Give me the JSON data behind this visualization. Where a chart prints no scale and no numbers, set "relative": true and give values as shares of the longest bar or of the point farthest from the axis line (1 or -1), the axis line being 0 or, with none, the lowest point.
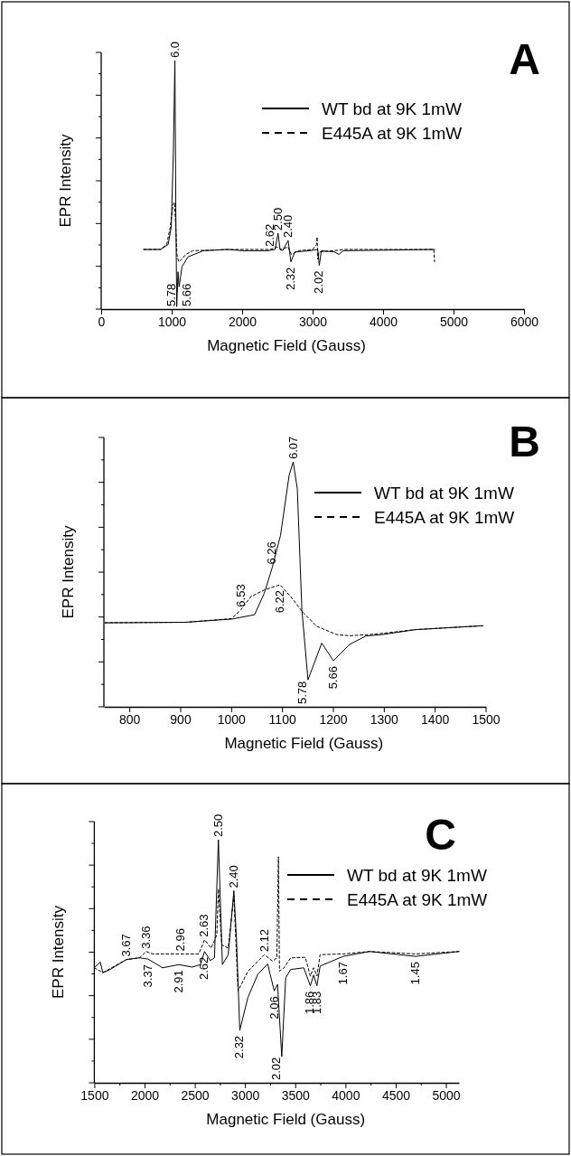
{
  "chart_data": [
    {
      "type": "line",
      "title": "A",
      "xlabel": "Magnetic Field (Gauss)",
      "ylabel": "EPR Intensity",
      "relative": true,
      "legend": "top right",
      "xlim": [
        0,
        6000
      ],
      "xticks": [
        0,
        1000,
        2000,
        3000,
        4000,
        5000,
        6000
      ],
      "series": [
        {
          "name": "WT bd at 9K 1mW",
          "color": "#000000",
          "line_style": "solid",
          "x": [
            604,
            842,
            950,
            994,
            1024,
            1046,
            1059,
            1072,
            1090,
            1106,
            1146,
            1231,
            1449,
            1795,
            2013,
            2359,
            2467,
            2510,
            2538,
            2574,
            2653,
            2692,
            2748,
            2963,
            3073,
            3095,
            3124,
            3309,
            3373,
            3436,
            4731
          ],
          "values": [
            0.24,
            0.24,
            0.26,
            0.33,
            0.63,
            1.0,
            0.4,
            0.01,
            0.15,
            0.09,
            0.17,
            0.21,
            0.235,
            0.24,
            0.235,
            0.235,
            0.24,
            0.305,
            0.24,
            0.235,
            0.276,
            0.19,
            0.23,
            0.235,
            0.24,
            0.176,
            0.235,
            0.23,
            0.22,
            0.235,
            0.24
          ]
        },
        {
          "name": "E445A at 9K 1mW",
          "color": "#000000",
          "line_style": "dashed",
          "x": [
            604,
            842,
            930,
            980,
            1020,
            1040,
            1055,
            1075,
            1100,
            1140,
            1200,
            1300,
            1800,
            2400,
            2500,
            2550,
            2650,
            2700,
            2800,
            3000,
            3055,
            3064,
            3075,
            3090,
            3300,
            3450,
            4720,
            4731
          ],
          "values": [
            0.24,
            0.24,
            0.26,
            0.33,
            0.42,
            0.43,
            0.35,
            0.22,
            0.19,
            0.2,
            0.22,
            0.235,
            0.24,
            0.24,
            0.25,
            0.24,
            0.25,
            0.22,
            0.235,
            0.24,
            0.26,
            0.29,
            0.2,
            0.23,
            0.235,
            0.24,
            0.24,
            0.19
          ]
        }
      ],
      "annotations": [
        {
          "text": "6.0",
          "x": 1046,
          "y": 1.0
        },
        {
          "text": "5.78",
          "x": 1072,
          "y": 0.01
        },
        {
          "text": "5.66",
          "x": 1106,
          "y": 0.09
        },
        {
          "text": "2.62",
          "x": 2400,
          "y": 0.24
        },
        {
          "text": "2.50",
          "x": 2510,
          "y": 0.305
        },
        {
          "text": "2.40",
          "x": 2653,
          "y": 0.276
        },
        {
          "text": "2.32",
          "x": 2692,
          "y": 0.19
        },
        {
          "text": "2.02",
          "x": 3095,
          "y": 0.176
        }
      ]
    },
    {
      "type": "line",
      "title": "B",
      "xlabel": "Magnetic Field (Gauss)",
      "ylabel": "EPR Intensity",
      "relative": true,
      "legend": "top right",
      "xlim": [
        750,
        1500
      ],
      "xticks": [
        800,
        900,
        1000,
        1100,
        1200,
        1300,
        1400,
        1500
      ],
      "series": [
        {
          "name": "WT bd at 9K 1mW",
          "color": "#000000",
          "line_style": "solid",
          "x": [
            752,
            910,
            1001,
            1046,
            1065,
            1081,
            1097,
            1114,
            1122,
            1130,
            1139,
            1151,
            1178,
            1201,
            1233,
            1265,
            1298,
            1362,
            1495
          ],
          "values": [
            0.343,
            0.345,
            0.358,
            0.376,
            0.463,
            0.57,
            0.7,
            0.946,
            1.0,
            0.89,
            0.396,
            0.11,
            0.26,
            0.188,
            0.255,
            0.289,
            0.295,
            0.315,
            0.331
          ]
        },
        {
          "name": "E445A at 9K 1mW",
          "color": "#000000",
          "line_style": "dashed",
          "x": [
            752,
            910,
            1001,
            1019,
            1039,
            1065,
            1096,
            1117,
            1142,
            1168,
            1207,
            1233,
            1272,
            1298,
            1362,
            1495
          ],
          "values": [
            0.343,
            0.345,
            0.36,
            0.396,
            0.45,
            0.477,
            0.498,
            0.45,
            0.383,
            0.329,
            0.295,
            0.29,
            0.295,
            0.3,
            0.315,
            0.331
          ]
        }
      ],
      "annotations": [
        {
          "text": "6.07",
          "x": 1122,
          "y": 1.0
        },
        {
          "text": "6.26",
          "x": 1081,
          "y": 0.57
        },
        {
          "text": "6.53",
          "x": 1019,
          "y": 0.396
        },
        {
          "text": "6.22",
          "x": 1096,
          "y": 0.498
        },
        {
          "text": "5.78",
          "x": 1151,
          "y": 0.11
        },
        {
          "text": "5.66",
          "x": 1201,
          "y": 0.188
        }
      ]
    },
    {
      "type": "line",
      "title": "C",
      "xlabel": "Magnetic Field (Gauss)",
      "ylabel": "EPR Intensity",
      "relative": true,
      "legend": "top right",
      "xlim": [
        1500,
        5130
      ],
      "xticks": [
        1500,
        {
          "value": 1750,
          "label": null
        },
        2000,
        {
          "value": 2250,
          "label": null
        },
        2500,
        {
          "value": 2750,
          "label": null
        },
        3000,
        {
          "value": 3250,
          "label": null
        },
        3500,
        {
          "value": 3750,
          "label": null
        },
        4000,
        {
          "value": 4250,
          "label": null
        },
        4500,
        {
          "value": 4750,
          "label": null
        },
        5000
      ],
      "series": [
        {
          "name": "WT bd at 9K 1mW",
          "color": "#000000",
          "line_style": "solid",
          "x": [
            1500,
            1559,
            1585,
            1657,
            1820,
            1951,
            2033,
            2180,
            2343,
            2474,
            2556,
            2598,
            2654,
            2696,
            2735,
            2775,
            2833,
            2889,
            2915,
            2948,
            3029,
            3127,
            3225,
            3291,
            3324,
            3366,
            3405,
            3454,
            3585,
            3650,
            3683,
            3716,
            3748,
            3977,
            4239,
            4696,
            5130
          ],
          "values": [
            0.473,
            0.497,
            0.453,
            0.466,
            0.507,
            0.514,
            0.509,
            0.473,
            0.486,
            0.476,
            0.486,
            0.54,
            0.503,
            0.514,
            1.0,
            0.486,
            0.527,
            0.79,
            0.595,
            0.216,
            0.351,
            0.446,
            0.489,
            0.378,
            0.405,
            0.108,
            0.432,
            0.466,
            0.473,
            0.399,
            0.443,
            0.399,
            0.48,
            0.52,
            0.54,
            0.52,
            0.54
          ]
        },
        {
          "name": "E445A at 9K 1mW",
          "color": "#000000",
          "line_style": "dashed",
          "x": [
            1500,
            1585,
            1820,
            1951,
            2016,
            2082,
            2539,
            2598,
            2663,
            2719,
            2735,
            2768,
            2833,
            2889,
            2931,
            3029,
            3193,
            3275,
            3317,
            3333,
            3343,
            3389,
            3454,
            3601,
            3650,
            3683,
            3716,
            3748,
            3977,
            4239,
            4696,
            5130
          ],
          "values": [
            0.473,
            0.453,
            0.507,
            0.514,
            0.54,
            0.53,
            0.53,
            0.588,
            0.554,
            0.608,
            0.797,
            0.568,
            0.554,
            0.77,
            0.378,
            0.459,
            0.527,
            0.5,
            0.514,
            0.93,
            0.459,
            0.473,
            0.514,
            0.516,
            0.439,
            0.473,
            0.439,
            0.527,
            0.53,
            0.54,
            0.53,
            0.54
          ]
        }
      ],
      "annotations": [
        {
          "text": "3.67",
          "x": 1820,
          "y": 0.507
        },
        {
          "text": "3.36",
          "x": 2016,
          "y": 0.54
        },
        {
          "text": "3.37",
          "x": 2033,
          "y": 0.509
        },
        {
          "text": "2.96",
          "x": 2360,
          "y": 0.53
        },
        {
          "text": "2.91",
          "x": 2343,
          "y": 0.486
        },
        {
          "text": "2.63",
          "x": 2598,
          "y": 0.588
        },
        {
          "text": "2.62",
          "x": 2598,
          "y": 0.54
        },
        {
          "text": "2.50",
          "x": 2735,
          "y": 1.0
        },
        {
          "text": "2.40",
          "x": 2889,
          "y": 0.79
        },
        {
          "text": "2.32",
          "x": 2948,
          "y": 0.216
        },
        {
          "text": "2.12",
          "x": 3193,
          "y": 0.527
        },
        {
          "text": "2.06",
          "x": 3291,
          "y": 0.378
        },
        {
          "text": "2.02",
          "x": 3366,
          "y": 0.108
        },
        {
          "text": "1.86",
          "x": 3650,
          "y": 0.399
        },
        {
          "text": "1.83",
          "x": 3716,
          "y": 0.399
        },
        {
          "text": "1.67",
          "x": 3977,
          "y": 0.52
        },
        {
          "text": "1.45",
          "x": 4696,
          "y": 0.52
        }
      ]
    }
  ]
}
